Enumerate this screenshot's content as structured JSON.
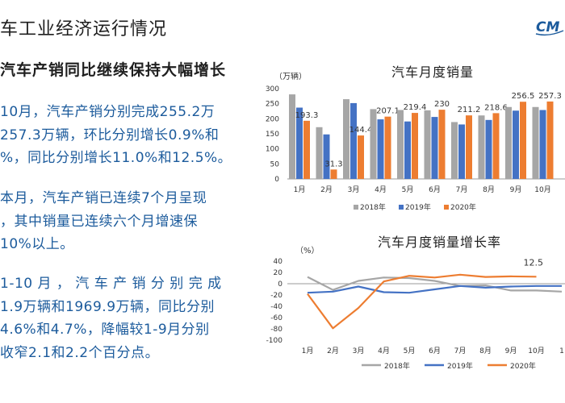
{
  "page": {
    "title": "车工业经济运行情况",
    "subtitle": "汽车产销同比继续保持大幅增长",
    "logo_text": "CM",
    "paragraphs": [
      [
        "10月，汽车产销分别完成255.2万",
        "257.3万辆，环比分别增长0.9%和",
        "%，同比分别增长11.0%和12.5%。"
      ],
      [
        "本月，汽车产销已连续7个月呈现",
        "，其中销量已连续六个月增速保",
        "10%以上。"
      ],
      [
        "1-10 月 ， 汽 车 产 销 分 别 完 成",
        "1.9万辆和1969.9万辆，同比分别",
        "4.6%和4.7%，降幅较1-9月分别",
        "收窄2.1和2.2个百分点。"
      ]
    ]
  },
  "colors": {
    "text_blue": "#1c5b9c",
    "series_2018": "#a6a6a6",
    "series_2019": "#4472c4",
    "series_2020": "#ed7d31"
  },
  "chart_data": [
    {
      "type": "bar",
      "title": "汽车月度销量",
      "ylabel": "（万辆）",
      "ylim": [
        0,
        300
      ],
      "yticks": [
        "0",
        "50",
        "100",
        "150",
        "200",
        "250",
        "300"
      ],
      "categories": [
        "1月",
        "2月",
        "3月",
        "4月",
        "5月",
        "6月",
        "7月",
        "8月",
        "9月",
        "10月"
      ],
      "series": [
        {
          "name": "2018年",
          "values": [
            281,
            172,
            265,
            232,
            229,
            228,
            189,
            211,
            239,
            239
          ]
        },
        {
          "name": "2019年",
          "values": [
            237,
            148,
            252,
            198,
            191,
            206,
            181,
            196,
            227,
            229
          ]
        },
        {
          "name": "2020年",
          "values": [
            193.3,
            31.3,
            144.4,
            207.1,
            219.4,
            230,
            211.2,
            218.6,
            256.5,
            257.3
          ]
        }
      ],
      "data_labels": [
        "193.3",
        "31.3",
        "144.4",
        "207.1",
        "219.4",
        "230",
        "211.2",
        "218.6",
        "256.5",
        "257.3"
      ],
      "grid": false,
      "legend": "bottom"
    },
    {
      "type": "line",
      "title": "汽车月度销量增长率",
      "ylabel": "（%）",
      "ylim": [
        -100,
        40
      ],
      "yticks": [
        "40",
        "20",
        "0",
        "-20",
        "-40",
        "-60",
        "-80",
        "-100"
      ],
      "categories": [
        "1月",
        "2月",
        "3月",
        "4月",
        "5月",
        "6月",
        "7月",
        "8月",
        "9月",
        "10月",
        "1"
      ],
      "series": [
        {
          "name": "2018年",
          "values": [
            12,
            -11,
            5,
            11,
            10,
            5,
            -4,
            -3,
            -12,
            -12,
            -14
          ]
        },
        {
          "name": "2019年",
          "values": [
            -16,
            -14,
            -5,
            -15,
            -16,
            -10,
            -4,
            -7,
            -5,
            -4,
            -4
          ]
        },
        {
          "name": "2020年",
          "values": [
            -18,
            -79,
            -43,
            4,
            14,
            11,
            16,
            12,
            13,
            12.5,
            null
          ]
        }
      ],
      "data_labels": [
        "12.5"
      ],
      "grid": false,
      "legend": "bottom"
    }
  ]
}
